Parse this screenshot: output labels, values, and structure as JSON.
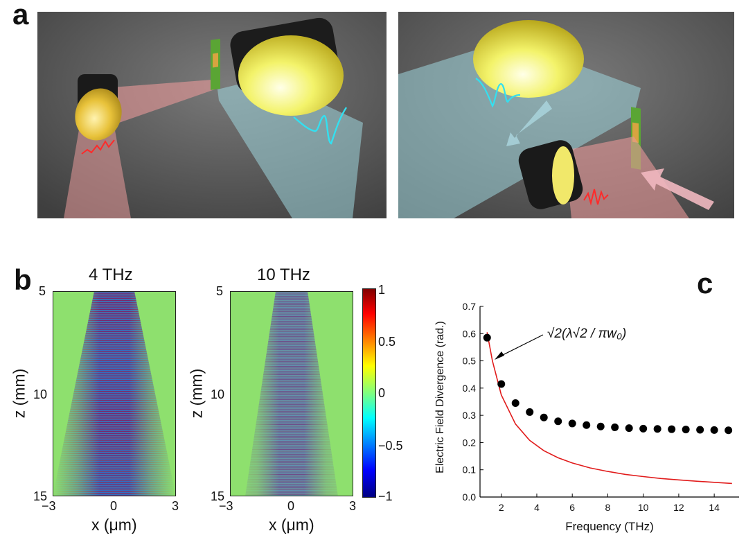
{
  "panels": {
    "a": {
      "label": "a"
    },
    "b": {
      "label": "b"
    },
    "c": {
      "label": "c"
    }
  },
  "panel_b": {
    "maps": [
      {
        "title": "4 THz",
        "xlabel": "x (μm)",
        "ylabel": "z (mm)",
        "xticks": [
          "−3",
          "0",
          "3"
        ],
        "yticks": [
          "5",
          "10",
          "15"
        ]
      },
      {
        "title": "10 THz",
        "xlabel": "x (μm)",
        "ylabel": "z (mm)",
        "xticks": [
          "−3",
          "0",
          "3"
        ],
        "yticks": [
          "5",
          "10",
          "15"
        ]
      }
    ],
    "colorbar": {
      "ticks": [
        "1",
        "0.5",
        "0",
        "−0.5",
        "−1"
      ],
      "range": [
        -1,
        1
      ],
      "colormap": "jet"
    }
  },
  "chart_data": {
    "type": "scatter",
    "xlabel": "Frequency (THz)",
    "ylabel": "Electric Field Divergence  (rad.)",
    "xlim": [
      0.8,
      15.4
    ],
    "ylim": [
      0,
      0.7
    ],
    "xticks": [
      2,
      4,
      6,
      8,
      10,
      12,
      14
    ],
    "yticks": [
      0.0,
      0.1,
      0.2,
      0.3,
      0.4,
      0.5,
      0.6,
      0.7
    ],
    "annotation": "√2(λ√2 / πw₀)",
    "series": [
      {
        "style": "points",
        "color": "#000000",
        "x": [
          1.2,
          2.0,
          2.8,
          3.6,
          4.4,
          5.2,
          6.0,
          6.8,
          7.6,
          8.4,
          9.2,
          10.0,
          10.8,
          11.6,
          12.4,
          13.2,
          14.0,
          14.8
        ],
        "y": [
          0.585,
          0.415,
          0.345,
          0.312,
          0.292,
          0.278,
          0.27,
          0.264,
          0.259,
          0.256,
          0.253,
          0.251,
          0.25,
          0.249,
          0.248,
          0.247,
          0.246,
          0.245
        ]
      },
      {
        "style": "line",
        "color": "#e11b1b",
        "x": [
          1.2,
          1.5,
          2.0,
          2.8,
          3.6,
          4.4,
          5.2,
          6.0,
          7.0,
          8.0,
          9.0,
          10.0,
          11.0,
          12.0,
          13.0,
          14.0,
          15.0
        ],
        "y": [
          0.605,
          0.5,
          0.375,
          0.268,
          0.208,
          0.17,
          0.144,
          0.125,
          0.107,
          0.094,
          0.083,
          0.075,
          0.068,
          0.063,
          0.058,
          0.054,
          0.05
        ]
      }
    ]
  }
}
